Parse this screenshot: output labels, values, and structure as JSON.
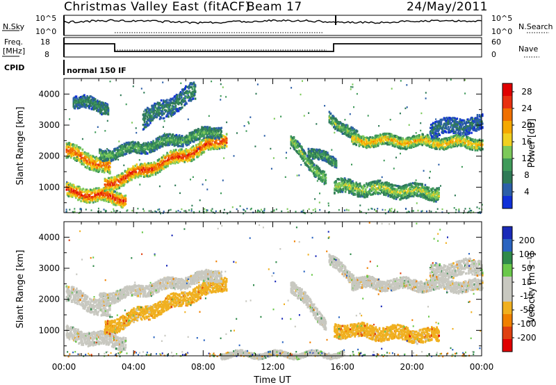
{
  "header": {
    "station": "Christmas Valley East (fitACF)",
    "beam": "Beam 17",
    "date": "24/May/2011"
  },
  "noise_panel": {
    "left_label": "N.Sky",
    "right_label": "N.Search",
    "left_ticks": [
      "10^5",
      "10^0"
    ],
    "right_ticks": [
      "10^5",
      "10^0"
    ]
  },
  "freq_panel": {
    "left_label_line1": "Freq.",
    "left_label_line2": "[MHz]",
    "right_label": "Nave",
    "left_ticks": [
      "18",
      "8"
    ],
    "right_ticks": [
      "60",
      "0"
    ]
  },
  "cpid_panel": {
    "label": "CPID",
    "program": "normal 150 IF"
  },
  "colors": {
    "power_scale": [
      "#1030d8",
      "#2c5fa8",
      "#2f7a56",
      "#3f9a5a",
      "#7cc95a",
      "#f0d020",
      "#f5a800",
      "#f07000",
      "#e83010",
      "#e00000"
    ],
    "velocity_scale": [
      "#1a2ab8",
      "#2a64c0",
      "#2f8a4a",
      "#6ac84a",
      "#c8c8c0",
      "#c8c8c0",
      "#f0b020",
      "#f08000",
      "#e04010",
      "#e00000"
    ],
    "ground_scatter": "#c8c8c0"
  },
  "chart_data": [
    {
      "type": "heatmap",
      "name": "power",
      "ylabel": "Slant Range [km]",
      "xlabel": "",
      "x_ticks": [
        "00:00",
        "04:00",
        "08:00",
        "12:00",
        "16:00",
        "20:00",
        "00:00"
      ],
      "y_ticks": [
        1000,
        2000,
        3000,
        4000
      ],
      "ylim": [
        180,
        4500
      ],
      "xlim_hours": [
        0,
        24
      ],
      "colorbar": {
        "label": "Power [dB]",
        "ticks": [
          "4",
          "8",
          "12",
          "16",
          "20",
          "24",
          "28"
        ],
        "range": [
          0,
          30
        ]
      },
      "echo_bands": [
        {
          "t0": 0.1,
          "t1": 2.6,
          "r0": 2200,
          "r1": 1650,
          "w": 250,
          "v": 22
        },
        {
          "t0": 0.1,
          "t1": 3.5,
          "r0": 900,
          "r1": 650,
          "w": 220,
          "v": 24
        },
        {
          "t0": 2.3,
          "t1": 9.3,
          "r0": 1100,
          "r1": 2600,
          "w": 220,
          "v": 24
        },
        {
          "t0": 2.0,
          "t1": 9.0,
          "r0": 2050,
          "r1": 2850,
          "w": 180,
          "v": 11
        },
        {
          "t0": 0.5,
          "t1": 2.5,
          "r0": 3800,
          "r1": 3600,
          "w": 200,
          "v": 8
        },
        {
          "t0": 4.5,
          "t1": 7.5,
          "r0": 3200,
          "r1": 4100,
          "w": 300,
          "v": 8
        },
        {
          "t0": 13.0,
          "t1": 15.0,
          "r0": 2500,
          "r1": 1250,
          "w": 200,
          "v": 13
        },
        {
          "t0": 14.0,
          "t1": 15.6,
          "r0": 2200,
          "r1": 1800,
          "w": 160,
          "v": 10
        },
        {
          "t0": 15.2,
          "t1": 16.8,
          "r0": 3300,
          "r1": 2600,
          "w": 180,
          "v": 12
        },
        {
          "t0": 16.5,
          "t1": 24.0,
          "r0": 2550,
          "r1": 2450,
          "w": 180,
          "v": 18
        },
        {
          "t0": 15.5,
          "t1": 21.5,
          "r0": 1050,
          "r1": 850,
          "w": 220,
          "v": 14
        },
        {
          "t0": 21.0,
          "t1": 24.0,
          "r0": 2900,
          "r1": 3100,
          "w": 250,
          "v": 6
        }
      ]
    },
    {
      "type": "heatmap",
      "name": "velocity",
      "ylabel": "Slant Range [km]",
      "xlabel": "Time UT",
      "x_ticks": [
        "00:00",
        "04:00",
        "08:00",
        "12:00",
        "16:00",
        "20:00",
        "00:00"
      ],
      "y_ticks": [
        1000,
        2000,
        3000,
        4000
      ],
      "ylim": [
        180,
        4500
      ],
      "xlim_hours": [
        0,
        24
      ],
      "colorbar": {
        "label": "Velocity [m s⁻¹]",
        "ticks": [
          "200",
          "100",
          "50",
          "15",
          "-15",
          "-50",
          "-100",
          "-200"
        ],
        "range": [
          -250,
          250
        ]
      },
      "echo_bands": [
        {
          "t0": 0.1,
          "t1": 2.6,
          "r0": 2200,
          "r1": 1650,
          "w": 250,
          "v": 0
        },
        {
          "t0": 0.1,
          "t1": 3.5,
          "r0": 900,
          "r1": 650,
          "w": 220,
          "v": 0
        },
        {
          "t0": 2.3,
          "t1": 9.3,
          "r0": 1100,
          "r1": 2600,
          "w": 220,
          "v": -60
        },
        {
          "t0": 2.0,
          "t1": 9.0,
          "r0": 2050,
          "r1": 2850,
          "w": 180,
          "v": 0
        },
        {
          "t0": 13.0,
          "t1": 15.0,
          "r0": 2500,
          "r1": 1250,
          "w": 200,
          "v": 0
        },
        {
          "t0": 15.2,
          "t1": 16.8,
          "r0": 3300,
          "r1": 2600,
          "w": 180,
          "v": 0
        },
        {
          "t0": 16.5,
          "t1": 24.0,
          "r0": 2550,
          "r1": 2450,
          "w": 180,
          "v": 0
        },
        {
          "t0": 15.5,
          "t1": 21.5,
          "r0": 1050,
          "r1": 850,
          "w": 220,
          "v": -70
        },
        {
          "t0": 21.0,
          "t1": 24.0,
          "r0": 2900,
          "r1": 3100,
          "w": 250,
          "v": 0
        },
        {
          "t0": 9.0,
          "t1": 16.0,
          "r0": 250,
          "r1": 250,
          "w": 80,
          "v": 30
        }
      ]
    }
  ]
}
